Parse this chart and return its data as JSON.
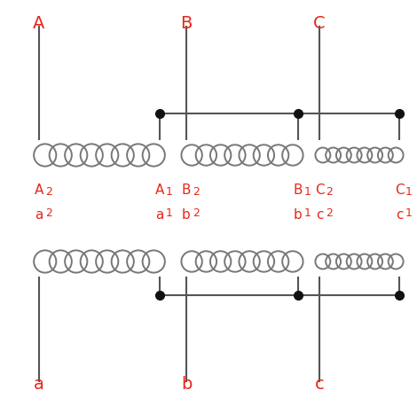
{
  "red_color": "#e8271a",
  "line_color": "#555555",
  "dot_color": "#111111",
  "bg_color": "#ffffff",
  "coil_color": "#777777",
  "figsize": [
    4.7,
    4.58
  ],
  "dpi": 100,
  "prim_label_names": [
    "A",
    "B",
    "C"
  ],
  "sec_label_names": [
    "a",
    "b",
    "c"
  ],
  "sub_labels_prim": [
    [
      "A",
      "2",
      "A",
      "1"
    ],
    [
      "B",
      "2",
      "B",
      "1"
    ],
    [
      "C",
      "2",
      "C",
      "1"
    ]
  ],
  "sub_labels_sec": [
    [
      "a",
      "2",
      "a",
      "1"
    ],
    [
      "b",
      "2",
      "b",
      "1"
    ],
    [
      "c",
      "2",
      "c",
      "1"
    ]
  ]
}
